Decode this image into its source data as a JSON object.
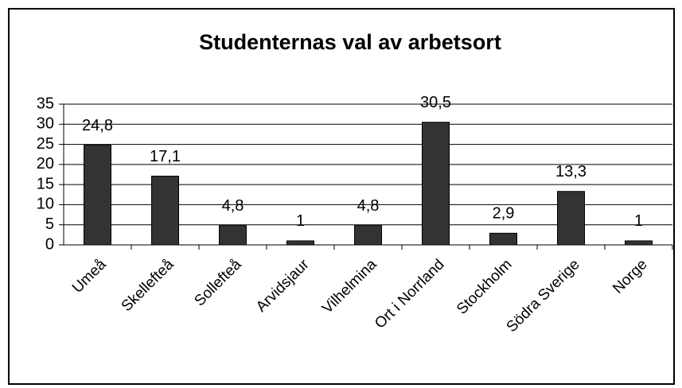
{
  "chart_data": {
    "type": "bar",
    "title": "Studenternas val av arbetsort",
    "categories": [
      "Umeå",
      "Skellefteå",
      "Sollefteå",
      "Arvidsjaur",
      "Vilhelmina",
      "Ort i Norrland",
      "Stockholm",
      "Södra Sverige",
      "Norge"
    ],
    "values": [
      24.8,
      17.1,
      4.8,
      1,
      4.8,
      30.5,
      2.9,
      13.3,
      1
    ],
    "value_labels": [
      "24,8",
      "17,1",
      "4,8",
      "1",
      "4,8",
      "30,5",
      "2,9",
      "13,3",
      "1"
    ],
    "color": "#333333",
    "ylim": [
      0,
      35
    ],
    "yticks": [
      0,
      5,
      10,
      15,
      20,
      25,
      30,
      35
    ],
    "grid": true
  }
}
